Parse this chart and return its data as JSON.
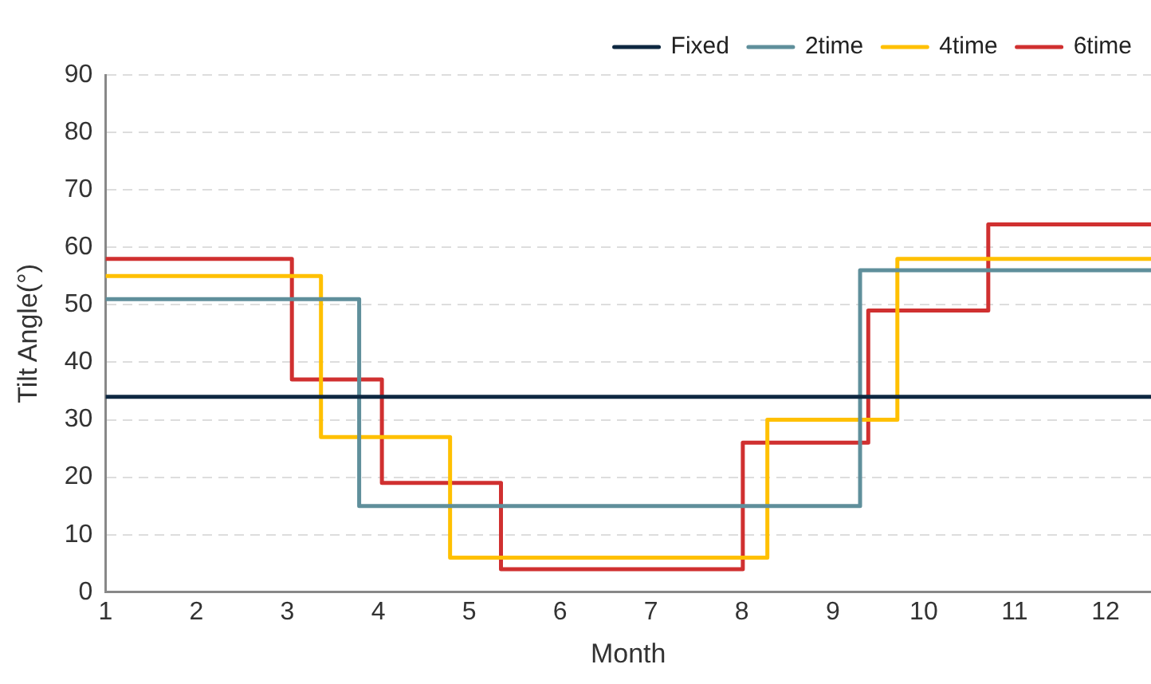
{
  "chart_data": {
    "type": "step",
    "xlabel": "Month",
    "ylabel": "Tilt Angle(°)",
    "xlim": [
      1,
      12.5
    ],
    "xticks": [
      1,
      2,
      3,
      4,
      5,
      6,
      7,
      8,
      9,
      10,
      11,
      12
    ],
    "ylim": [
      0,
      90
    ],
    "yticks": [
      0,
      10,
      20,
      30,
      40,
      50,
      60,
      70,
      80,
      90
    ],
    "grid": "y",
    "legend": "top right",
    "line_style": "solid",
    "marker": "none",
    "series": [
      {
        "name": "Fixed",
        "color": "#0e2841",
        "x": [
          1,
          12.5
        ],
        "values": [
          34,
          34
        ]
      },
      {
        "name": "2time",
        "color": "#5f8f9b",
        "x": [
          1,
          3.79,
          9.3,
          12.5
        ],
        "values": [
          51,
          15,
          56,
          56
        ]
      },
      {
        "name": "4time",
        "color": "#ffc000",
        "x": [
          1,
          3.37,
          4.79,
          8.28,
          9.71,
          12.5
        ],
        "values": [
          55,
          27,
          6,
          30,
          58,
          58
        ]
      },
      {
        "name": "6time",
        "color": "#d03030",
        "x": [
          1,
          3.05,
          4.04,
          5.35,
          8.01,
          9.39,
          10.71,
          12.5
        ],
        "values": [
          58,
          37,
          19,
          4,
          26,
          49,
          64,
          64
        ]
      }
    ]
  }
}
